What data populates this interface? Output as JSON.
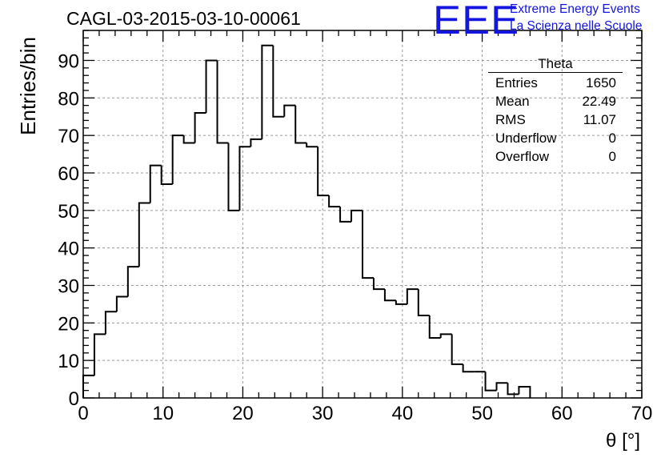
{
  "header": {
    "title": "CAGL-03-2015-03-10-00061"
  },
  "logo": {
    "mark": "EEE",
    "line1": "Extreme Energy Events",
    "line2": "La Scienza nelle Scuole",
    "color": "#1515e0"
  },
  "stats": {
    "title": "Theta",
    "rows": [
      {
        "label": "Entries",
        "value": "1650"
      },
      {
        "label": "Mean",
        "value": "22.49"
      },
      {
        "label": "RMS",
        "value": "11.07"
      },
      {
        "label": "Underflow",
        "value": "0"
      },
      {
        "label": "Overflow",
        "value": "0"
      }
    ]
  },
  "chart_data": {
    "type": "histogram",
    "title": "CAGL-03-2015-03-10-00061",
    "xlabel": "θ [°]",
    "ylabel": "Entries/bin",
    "xlim": [
      0,
      70
    ],
    "ylim": [
      0,
      98
    ],
    "bin_width": 1.4,
    "bin_edges_start": 0,
    "values": [
      6,
      17,
      23,
      27,
      35,
      52,
      62,
      57,
      70,
      68,
      76,
      90,
      68,
      50,
      67,
      69,
      94,
      75,
      78,
      68,
      67,
      54,
      51,
      47,
      50,
      32,
      29,
      26,
      25,
      29,
      22,
      16,
      17,
      9,
      7,
      7,
      2,
      4,
      1,
      3
    ],
    "x_ticks": [
      0,
      10,
      20,
      30,
      40,
      50,
      60,
      70
    ],
    "y_ticks": [
      0,
      10,
      20,
      30,
      40,
      50,
      60,
      70,
      80,
      90
    ],
    "grid": true,
    "line_color": "#000000"
  }
}
